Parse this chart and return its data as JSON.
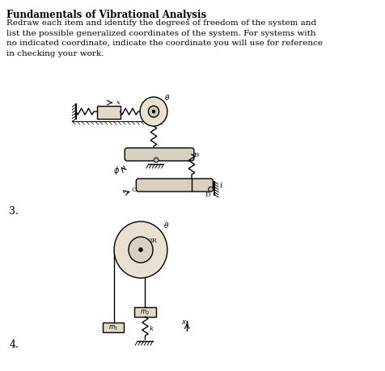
{
  "title": "Fundamentals of Vibrational Analysis",
  "body_text": "Redraw each item and identify the degrees of freedom of the system and\nlist the possible generalized coordinates of the system. For systems with\nno indicated coordinate, indicate the coordinate you will use for reference\nin checking your work.",
  "background_color": "#ffffff",
  "text_color": "#000000",
  "label_3": "3.",
  "label_4": "4."
}
